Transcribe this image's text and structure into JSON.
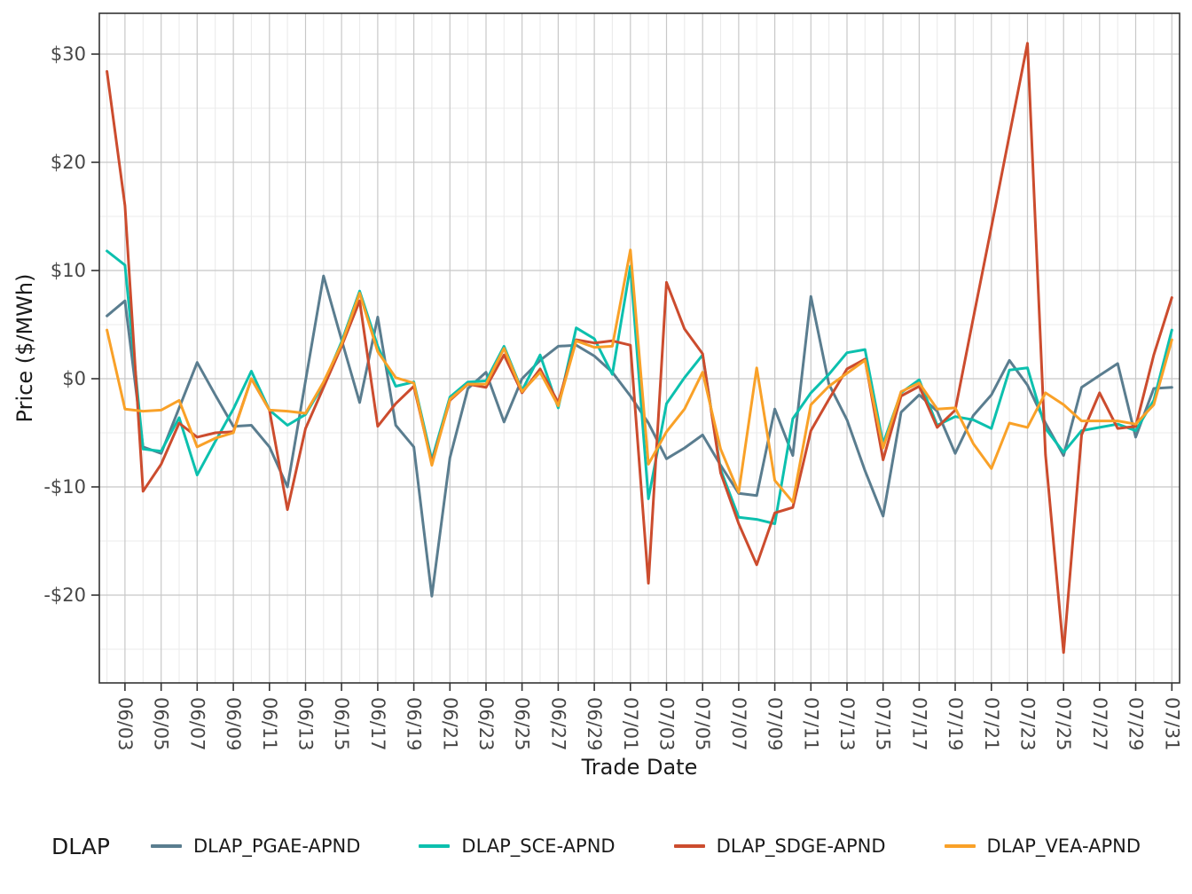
{
  "chart_data": {
    "type": "line",
    "title": "",
    "xlabel": "Trade Date",
    "ylabel": "Price ($/MWh)",
    "legend_title": "DLAP",
    "legend_position": "bottom",
    "grid": "major and minor, light gray on white, dark panel border",
    "ylim": [
      -28.5,
      33.9
    ],
    "ytick_values": [
      30,
      20,
      10,
      0,
      -10,
      -20
    ],
    "ytick_labels": [
      "$30",
      "$20",
      "$10",
      "$0",
      "-$10",
      "-$20"
    ],
    "xtick_labels": [
      "06/03",
      "06/05",
      "06/07",
      "06/09",
      "06/11",
      "06/13",
      "06/15",
      "06/17",
      "06/19",
      "06/21",
      "06/23",
      "06/25",
      "06/27",
      "06/29",
      "07/01",
      "07/03",
      "07/05",
      "07/07",
      "07/09",
      "07/11",
      "07/13",
      "07/15",
      "07/17",
      "07/19",
      "07/21",
      "07/23",
      "07/25",
      "07/27",
      "07/29",
      "07/31"
    ],
    "dates": [
      "06/02",
      "06/03",
      "06/04",
      "06/05",
      "06/06",
      "06/07",
      "06/08",
      "06/09",
      "06/10",
      "06/11",
      "06/12",
      "06/13",
      "06/14",
      "06/15",
      "06/16",
      "06/17",
      "06/18",
      "06/19",
      "06/20",
      "06/21",
      "06/22",
      "06/23",
      "06/24",
      "06/25",
      "06/26",
      "06/27",
      "06/28",
      "06/29",
      "06/30",
      "07/01",
      "07/02",
      "07/03",
      "07/04",
      "07/05",
      "07/06",
      "07/07",
      "07/08",
      "07/09",
      "07/10",
      "07/11",
      "07/12",
      "07/13",
      "07/14",
      "07/15",
      "07/16",
      "07/17",
      "07/18",
      "07/19",
      "07/20",
      "07/21",
      "07/22",
      "07/23",
      "07/24",
      "07/25",
      "07/26",
      "07/27",
      "07/28",
      "07/29",
      "07/30",
      "07/31"
    ],
    "series": [
      {
        "name": "DLAP_PGAE-APND",
        "color": "#5a7d8f",
        "values": [
          5.8,
          7.2,
          -6.3,
          -6.9,
          -2.7,
          1.5,
          -1.5,
          -4.4,
          -4.3,
          -6.3,
          -10.0,
          -0.2,
          9.5,
          3.6,
          -2.2,
          5.7,
          -4.3,
          -6.3,
          -20.1,
          -7.3,
          -0.9,
          0.6,
          -4.0,
          0.0,
          1.7,
          3.0,
          3.1,
          2.1,
          0.6,
          -1.6,
          -4.1,
          -7.4,
          -6.4,
          -5.2,
          -8.0,
          -10.6,
          -10.8,
          -2.8,
          -7.1,
          7.6,
          -0.5,
          -3.8,
          -8.5,
          -12.7,
          -3.1,
          -1.5,
          -3.0,
          -6.9,
          -3.4,
          -1.5,
          1.7,
          -0.6,
          -4.1,
          -7.1,
          -0.8,
          0.3,
          1.4,
          -5.4,
          -0.9,
          -0.8
        ]
      },
      {
        "name": "DLAP_SCE-APND",
        "color": "#0cc0ae",
        "values": [
          11.8,
          10.5,
          -6.5,
          -6.7,
          -3.6,
          -8.9,
          -5.8,
          -2.8,
          0.7,
          -2.9,
          -4.3,
          -3.3,
          -0.5,
          3.4,
          8.1,
          3.0,
          -0.7,
          -0.3,
          -7.5,
          -1.7,
          -0.3,
          -0.2,
          3.0,
          -1.1,
          2.2,
          -2.7,
          4.7,
          3.7,
          0.4,
          10.4,
          -11.1,
          -2.3,
          0.1,
          2.2,
          -8.4,
          -12.8,
          -13.0,
          -13.4,
          -3.7,
          -1.3,
          0.4,
          2.4,
          2.7,
          -6.0,
          -1.3,
          -0.1,
          -4.3,
          -3.5,
          -3.8,
          -4.6,
          0.8,
          1.0,
          -4.6,
          -6.8,
          -4.8,
          -4.5,
          -4.2,
          -4.8,
          -2.0,
          4.5
        ]
      },
      {
        "name": "DLAP_SDGE-APND",
        "color": "#cc4c2e",
        "values": [
          28.4,
          16.0,
          -10.4,
          -7.9,
          -4.1,
          -5.4,
          -5.0,
          -4.9,
          0.0,
          -2.9,
          -12.1,
          -4.6,
          -0.8,
          3.0,
          7.2,
          -4.4,
          -2.3,
          -0.7,
          -7.8,
          -2.0,
          -0.5,
          -0.8,
          2.2,
          -1.3,
          0.9,
          -2.2,
          3.6,
          3.3,
          3.5,
          3.1,
          -18.9,
          8.9,
          4.6,
          2.3,
          -8.7,
          -13.4,
          -17.2,
          -12.4,
          -11.9,
          -4.8,
          -1.9,
          0.9,
          1.8,
          -7.5,
          -1.6,
          -0.7,
          -4.5,
          -2.9,
          5.6,
          14.0,
          22.5,
          31.0,
          -7.0,
          -25.3,
          -5.2,
          -1.3,
          -4.6,
          -4.4,
          2.2,
          7.5
        ]
      },
      {
        "name": "DLAP_VEA-APND",
        "color": "#f9a128",
        "values": [
          4.5,
          -2.8,
          -3.0,
          -2.9,
          -2.0,
          -6.3,
          -5.5,
          -5.0,
          0.0,
          -2.9,
          -3.0,
          -3.2,
          -0.3,
          3.2,
          7.9,
          2.5,
          0.1,
          -0.4,
          -8.0,
          -1.9,
          -0.5,
          -0.5,
          2.8,
          -1.2,
          0.6,
          -2.5,
          3.5,
          2.9,
          3.0,
          11.9,
          -7.9,
          -4.9,
          -2.8,
          0.6,
          -6.5,
          -10.5,
          1.0,
          -9.4,
          -11.4,
          -2.4,
          -0.7,
          0.5,
          1.7,
          -6.4,
          -1.2,
          -0.4,
          -2.8,
          -2.7,
          -6.0,
          -8.3,
          -4.1,
          -4.5,
          -1.3,
          -2.4,
          -3.9,
          -3.9,
          -3.9,
          -4.2,
          -2.4,
          3.6
        ]
      }
    ]
  },
  "axes": {
    "x_title": "Trade Date",
    "y_title": "Price ($/MWh)"
  },
  "legend": {
    "title": "DLAP"
  }
}
